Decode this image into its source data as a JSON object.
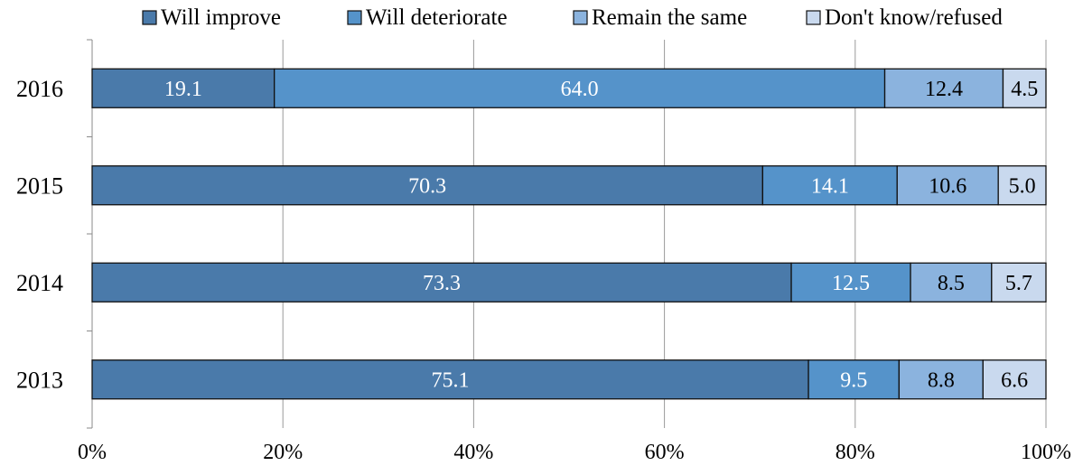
{
  "chart_data": {
    "type": "bar",
    "orientation": "horizontal",
    "stacked": "percent",
    "categories": [
      "2016",
      "2015",
      "2014",
      "2013"
    ],
    "series": [
      {
        "name": "Will improve",
        "values": [
          19.1,
          70.3,
          73.3,
          75.1
        ],
        "color": "#4a7aaa",
        "label_color": "#ffffff"
      },
      {
        "name": "Will deteriorate",
        "values": [
          64.0,
          14.1,
          12.5,
          9.5
        ],
        "color": "#5593ca",
        "label_color": "#ffffff"
      },
      {
        "name": "Remain the same",
        "values": [
          12.4,
          10.6,
          8.5,
          8.8
        ],
        "color": "#8bb3de",
        "label_color": "#000000"
      },
      {
        "name": "Don't know/refused",
        "values": [
          4.5,
          5.0,
          5.7,
          6.6
        ],
        "color": "#c9d9ee",
        "label_color": "#000000"
      }
    ],
    "value_labels": {
      "2016": [
        "19.1",
        "64.0",
        "12.4",
        "4.5"
      ],
      "2015": [
        "70.3",
        "14.1",
        "10.6",
        "5.0"
      ],
      "2014": [
        "73.3",
        "12.5",
        "8.5",
        "5.7"
      ],
      "2013": [
        "75.1",
        "9.5",
        "8.8",
        "6.6"
      ]
    },
    "x_ticks": [
      "0%",
      "20%",
      "40%",
      "60%",
      "80%",
      "100%"
    ],
    "xlim": [
      0,
      100
    ],
    "grid": true,
    "legend_position": "top",
    "xlabel": "",
    "ylabel": ""
  }
}
